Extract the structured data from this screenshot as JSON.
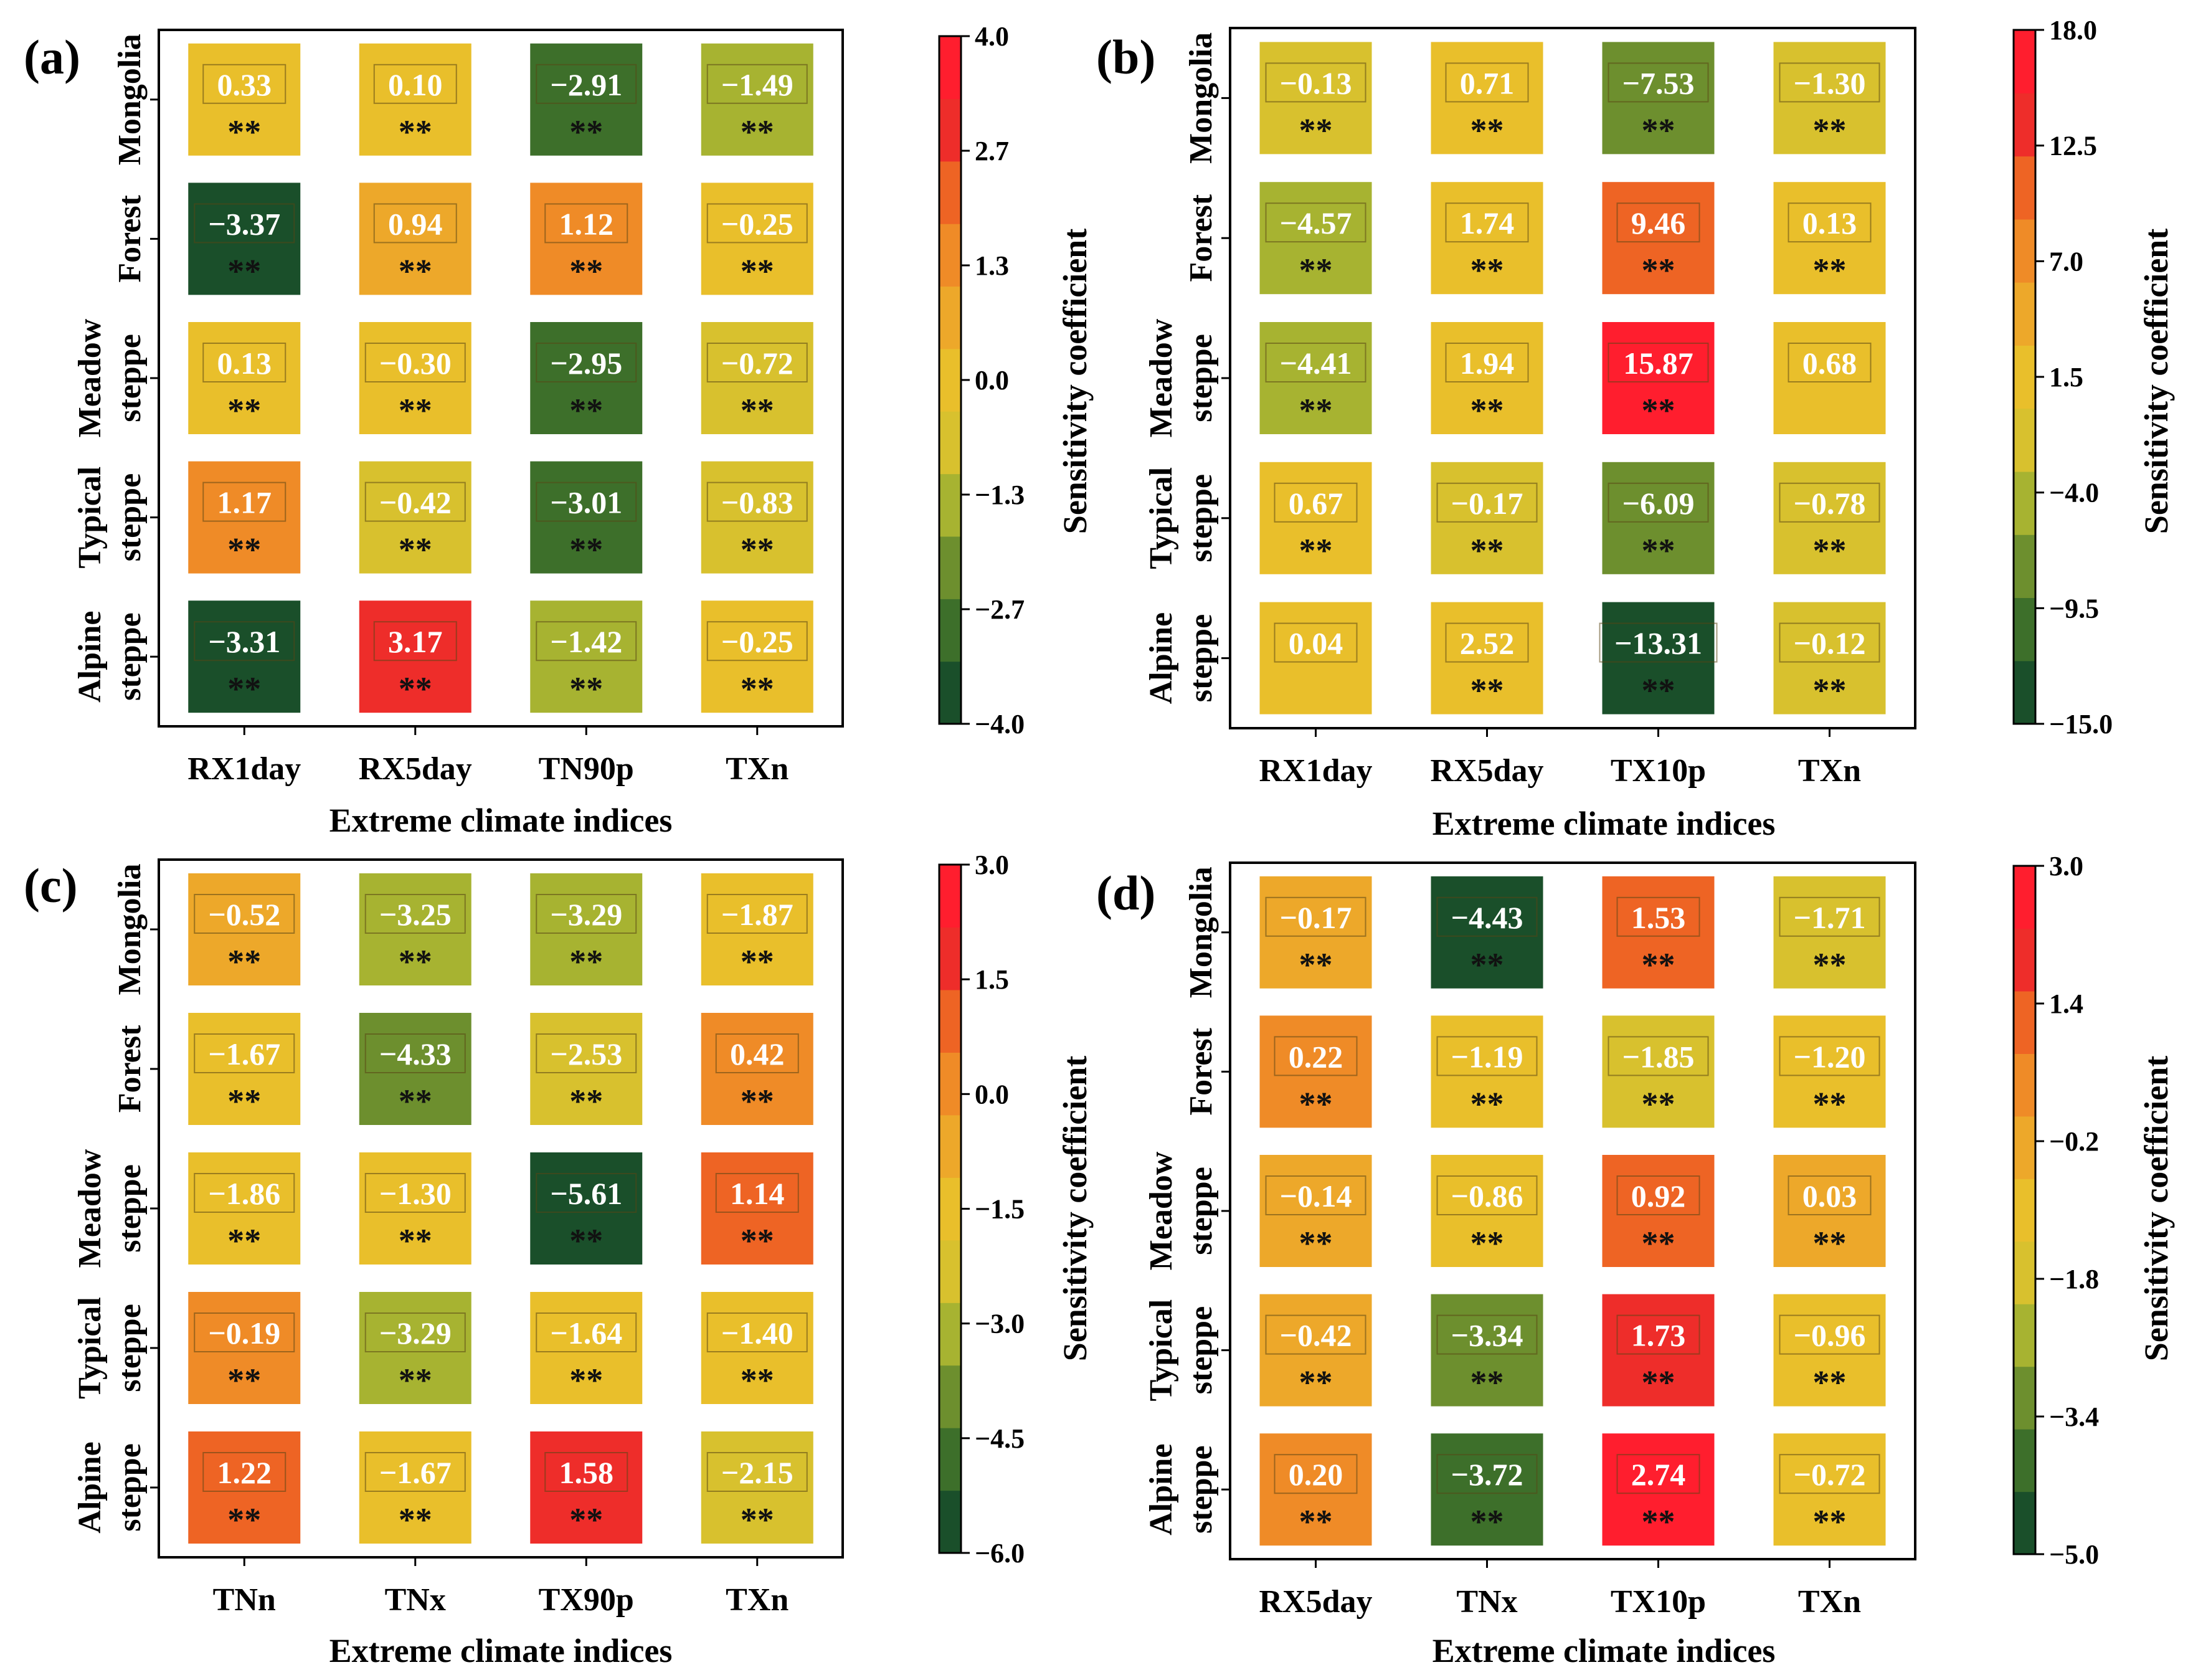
{
  "chart_data": [
    {
      "type": "heatmap",
      "panel_label": "(a)",
      "xlabel": "Extreme climate indices",
      "x_categories": [
        "RX1day",
        "RX5day",
        "TN90p",
        "TXn"
      ],
      "y_categories": [
        "Mongolia",
        "Forest",
        "Meadow steppe",
        "Typical steppe",
        "Alpine steppe"
      ],
      "y_tick_lines": [
        [
          "Mongolia"
        ],
        [
          "Forest"
        ],
        [
          "Meadow",
          "steppe"
        ],
        [
          "Typical",
          "steppe"
        ],
        [
          "Alpine",
          "steppe"
        ]
      ],
      "values": [
        [
          0.33,
          0.1,
          -2.91,
          -1.49
        ],
        [
          -3.37,
          0.94,
          1.12,
          -0.25
        ],
        [
          0.13,
          -0.3,
          -2.95,
          -0.72
        ],
        [
          1.17,
          -0.42,
          -3.01,
          -0.83
        ],
        [
          -3.31,
          3.17,
          -1.42,
          -0.25
        ]
      ],
      "labels": [
        [
          "0.33",
          "0.10",
          "−2.91",
          "−1.49"
        ],
        [
          "−3.37",
          "0.94",
          "1.12",
          "−0.25"
        ],
        [
          "0.13",
          "−0.30",
          "−2.95",
          "−0.72"
        ],
        [
          "1.17",
          "−0.42",
          "−3.01",
          "−0.83"
        ],
        [
          "−3.31",
          "3.17",
          "−1.42",
          "−0.25"
        ]
      ],
      "significance": [
        [
          "**",
          "**",
          "**",
          "**"
        ],
        [
          "**",
          "**",
          "**",
          "**"
        ],
        [
          "**",
          "**",
          "**",
          "**"
        ],
        [
          "**",
          "**",
          "**",
          "**"
        ],
        [
          "**",
          "**",
          "**",
          "**"
        ]
      ],
      "colorbar": {
        "label": "Sensitivity coefficient",
        "min": -4.0,
        "max": 4.0,
        "ticks": [
          "4.0",
          "2.7",
          "1.3",
          "0.0",
          "−1.3",
          "−2.7",
          "−4.0"
        ]
      }
    },
    {
      "type": "heatmap",
      "panel_label": "(b)",
      "xlabel": "Extreme climate indices",
      "x_categories": [
        "RX1day",
        "RX5day",
        "TX10p",
        "TXn"
      ],
      "y_categories": [
        "Mongolia",
        "Forest",
        "Meadow steppe",
        "Typical steppe",
        "Alpine steppe"
      ],
      "y_tick_lines": [
        [
          "Mongolia"
        ],
        [
          "Forest"
        ],
        [
          "Meadow",
          "steppe"
        ],
        [
          "Typical",
          "steppe"
        ],
        [
          "Alpine",
          "steppe"
        ]
      ],
      "values": [
        [
          -0.13,
          0.71,
          -7.53,
          -1.3
        ],
        [
          -4.57,
          1.74,
          9.46,
          0.13
        ],
        [
          -4.41,
          1.94,
          15.87,
          0.68
        ],
        [
          0.67,
          -0.17,
          -6.09,
          -0.78
        ],
        [
          0.04,
          2.52,
          -13.31,
          -0.12
        ]
      ],
      "labels": [
        [
          "−0.13",
          "0.71",
          "−7.53",
          "−1.30"
        ],
        [
          "−4.57",
          "1.74",
          "9.46",
          "0.13"
        ],
        [
          "−4.41",
          "1.94",
          "15.87",
          "0.68"
        ],
        [
          "0.67",
          "−0.17",
          "−6.09",
          "−0.78"
        ],
        [
          "0.04",
          "2.52",
          "−13.31",
          "−0.12"
        ]
      ],
      "significance": [
        [
          "**",
          "**",
          "**",
          "**"
        ],
        [
          "**",
          "**",
          "**",
          "**"
        ],
        [
          "**",
          "**",
          "**",
          ""
        ],
        [
          "**",
          "**",
          "**",
          "**"
        ],
        [
          "",
          "**",
          "**",
          "**"
        ]
      ],
      "colorbar": {
        "label": "Sensitivity coefficient",
        "min": -15.0,
        "max": 18.0,
        "ticks": [
          "18.0",
          "12.5",
          "7.0",
          "1.5",
          "−4.0",
          "−9.5",
          "−15.0"
        ]
      }
    },
    {
      "type": "heatmap",
      "panel_label": "(c)",
      "xlabel": "Extreme climate indices",
      "x_categories": [
        "TNn",
        "TNx",
        "TX90p",
        "TXn"
      ],
      "y_categories": [
        "Mongolia",
        "Forest",
        "Meadow steppe",
        "Typical steppe",
        "Alpine steppe"
      ],
      "y_tick_lines": [
        [
          "Mongolia"
        ],
        [
          "Forest"
        ],
        [
          "Meadow",
          "steppe"
        ],
        [
          "Typical",
          "steppe"
        ],
        [
          "Alpine",
          "steppe"
        ]
      ],
      "values": [
        [
          -0.52,
          -3.25,
          -3.29,
          -1.87
        ],
        [
          -1.67,
          -4.33,
          -2.53,
          0.42
        ],
        [
          -1.86,
          -1.3,
          -5.61,
          1.14
        ],
        [
          -0.19,
          -3.29,
          -1.64,
          -1.4
        ],
        [
          1.22,
          -1.67,
          1.58,
          -2.15
        ]
      ],
      "labels": [
        [
          "−0.52",
          "−3.25",
          "−3.29",
          "−1.87"
        ],
        [
          "−1.67",
          "−4.33",
          "−2.53",
          "0.42"
        ],
        [
          "−1.86",
          "−1.30",
          "−5.61",
          "1.14"
        ],
        [
          "−0.19",
          "−3.29",
          "−1.64",
          "−1.40"
        ],
        [
          "1.22",
          "−1.67",
          "1.58",
          "−2.15"
        ]
      ],
      "significance": [
        [
          "**",
          "**",
          "**",
          "**"
        ],
        [
          "**",
          "**",
          "**",
          "**"
        ],
        [
          "**",
          "**",
          "**",
          "**"
        ],
        [
          "**",
          "**",
          "**",
          "**"
        ],
        [
          "**",
          "**",
          "**",
          "**"
        ]
      ],
      "colorbar": {
        "label": "Sensitivity coefficient",
        "min": -6.0,
        "max": 3.0,
        "ticks": [
          "3.0",
          "1.5",
          "0.0",
          "−1.5",
          "−3.0",
          "−4.5",
          "−6.0"
        ]
      }
    },
    {
      "type": "heatmap",
      "panel_label": "(d)",
      "xlabel": "Extreme climate indices",
      "x_categories": [
        "RX5day",
        "TNx",
        "TX10p",
        "TXn"
      ],
      "y_categories": [
        "Mongolia",
        "Forest",
        "Meadow steppe",
        "Typical steppe",
        "Alpine steppe"
      ],
      "y_tick_lines": [
        [
          "Mongolia"
        ],
        [
          "Forest"
        ],
        [
          "Meadow",
          "steppe"
        ],
        [
          "Typical",
          "steppe"
        ],
        [
          "Alpine",
          "steppe"
        ]
      ],
      "values": [
        [
          -0.17,
          -4.43,
          1.53,
          -1.71
        ],
        [
          0.22,
          -1.19,
          -1.85,
          -1.2
        ],
        [
          -0.14,
          -0.86,
          0.92,
          0.03
        ],
        [
          -0.42,
          -3.34,
          1.73,
          -0.96
        ],
        [
          0.2,
          -3.72,
          2.74,
          -0.72
        ]
      ],
      "labels": [
        [
          "−0.17",
          "−4.43",
          "1.53",
          "−1.71"
        ],
        [
          "0.22",
          "−1.19",
          "−1.85",
          "−1.20"
        ],
        [
          "−0.14",
          "−0.86",
          "0.92",
          "0.03"
        ],
        [
          "−0.42",
          "−3.34",
          "1.73",
          "−0.96"
        ],
        [
          "0.20",
          "−3.72",
          "2.74",
          "−0.72"
        ]
      ],
      "significance": [
        [
          "**",
          "**",
          "**",
          "**"
        ],
        [
          "**",
          "**",
          "**",
          "**"
        ],
        [
          "**",
          "**",
          "**",
          "**"
        ],
        [
          "**",
          "**",
          "**",
          "**"
        ],
        [
          "**",
          "**",
          "**",
          "**"
        ]
      ],
      "colorbar": {
        "label": "Sensitivity coefficient",
        "min": -5.0,
        "max": 3.0,
        "ticks": [
          "3.0",
          "1.4",
          "−0.2",
          "−1.8",
          "−3.4",
          "−5.0"
        ]
      }
    }
  ],
  "colormap": [
    "#1a4f2a",
    "#3d6f2a",
    "#6d8f2e",
    "#a7b331",
    "#d8c12e",
    "#e9bf2b",
    "#eda82a",
    "#ef8b27",
    "#ee6424",
    "#ee2d2a",
    "#ff1e2e"
  ]
}
